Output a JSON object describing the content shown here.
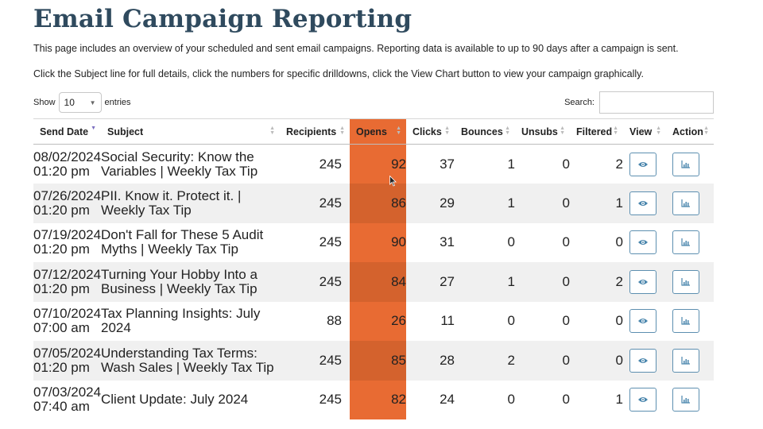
{
  "page": {
    "title": "Email Campaign Reporting",
    "intro_1": "This page includes an overview of your scheduled and sent email campaigns. Reporting data is available to up to 90 days after a campaign is sent.",
    "intro_2": "Click the Subject line for full details, click the numbers for specific drilldowns, click the View Chart button to view your campaign graphically."
  },
  "controls": {
    "show_label": "Show",
    "entries_value": "10",
    "entries_label": "entries",
    "search_label": "Search:",
    "search_value": ""
  },
  "table": {
    "columns": [
      "Send Date",
      "Subject",
      "Recipients",
      "Opens",
      "Clicks",
      "Bounces",
      "Unsubs",
      "Filtered",
      "View",
      "Action"
    ],
    "highlight_color": "#e86b33",
    "rows": [
      {
        "date": "08/02/2024",
        "time": "01:20 pm",
        "subject": "Social Security: Know the Variables | Weekly Tax Tip",
        "recipients": "245",
        "opens": "92",
        "clicks": "37",
        "bounces": "1",
        "unsubs": "0",
        "filtered": "2"
      },
      {
        "date": "07/26/2024",
        "time": "01:20 pm",
        "subject": "PII. Know it. Protect it. | Weekly Tax Tip",
        "recipients": "245",
        "opens": "86",
        "clicks": "29",
        "bounces": "1",
        "unsubs": "0",
        "filtered": "1"
      },
      {
        "date": "07/19/2024",
        "time": "01:20 pm",
        "subject": "Don't Fall for These 5 Audit Myths | Weekly Tax Tip",
        "recipients": "245",
        "opens": "90",
        "clicks": "31",
        "bounces": "0",
        "unsubs": "0",
        "filtered": "0"
      },
      {
        "date": "07/12/2024",
        "time": "01:20 pm",
        "subject": "Turning Your Hobby Into a Business | Weekly Tax Tip",
        "recipients": "245",
        "opens": "84",
        "clicks": "27",
        "bounces": "1",
        "unsubs": "0",
        "filtered": "2"
      },
      {
        "date": "07/10/2024",
        "time": "07:00 am",
        "subject": "Tax Planning Insights: July 2024",
        "recipients": "88",
        "opens": "26",
        "clicks": "11",
        "bounces": "0",
        "unsubs": "0",
        "filtered": "0"
      },
      {
        "date": "07/05/2024",
        "time": "01:20 pm",
        "subject": "Understanding Tax Terms: Wash Sales | Weekly Tax Tip",
        "recipients": "245",
        "opens": "85",
        "clicks": "28",
        "bounces": "2",
        "unsubs": "0",
        "filtered": "0"
      },
      {
        "date": "07/03/2024",
        "time": "07:40 am",
        "subject": "Client Update: July 2024",
        "recipients": "245",
        "opens": "82",
        "clicks": "24",
        "bounces": "0",
        "unsubs": "0",
        "filtered": "1"
      }
    ]
  },
  "icons": {
    "view": "eye-icon",
    "action": "bar-chart-icon",
    "sort": "sort-icon"
  }
}
